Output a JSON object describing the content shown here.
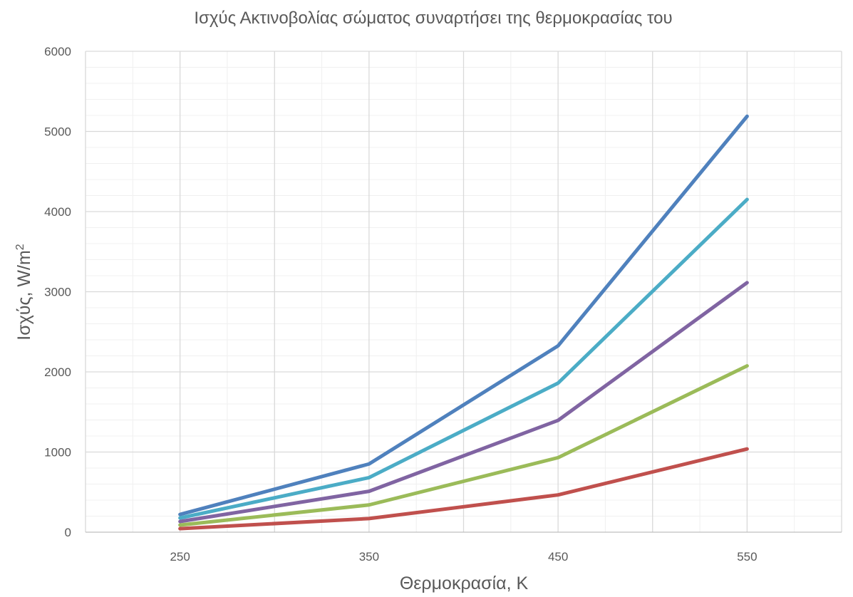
{
  "chart_data": {
    "type": "line",
    "title": "Ισχύς Ακτινοβολίας σώματος συναρτήσει της θερμοκρασίας του",
    "xlabel": "Θερμοκρασία, K",
    "ylabel_text": "Ισχύς, W/m",
    "ylabel_sup": "2",
    "x": [
      250,
      350,
      450,
      550
    ],
    "xlim": [
      200,
      600
    ],
    "ylim": [
      0,
      6000
    ],
    "yticks": [
      0,
      1000,
      2000,
      3000,
      4000,
      5000,
      6000
    ],
    "xticks": [
      250,
      350,
      450,
      550
    ],
    "grid": true,
    "legend": "none",
    "series": [
      {
        "color": "#4F81BD",
        "values": [
          221,
          851,
          2325,
          5189
        ]
      },
      {
        "color": "#4BACC6",
        "values": [
          177,
          681,
          1860,
          4151
        ]
      },
      {
        "color": "#8064A2",
        "values": [
          133,
          510,
          1395,
          3113
        ]
      },
      {
        "color": "#9BBB59",
        "values": [
          89,
          340,
          930,
          2075
        ]
      },
      {
        "color": "#C0504D",
        "values": [
          44,
          170,
          465,
          1038
        ]
      }
    ]
  }
}
